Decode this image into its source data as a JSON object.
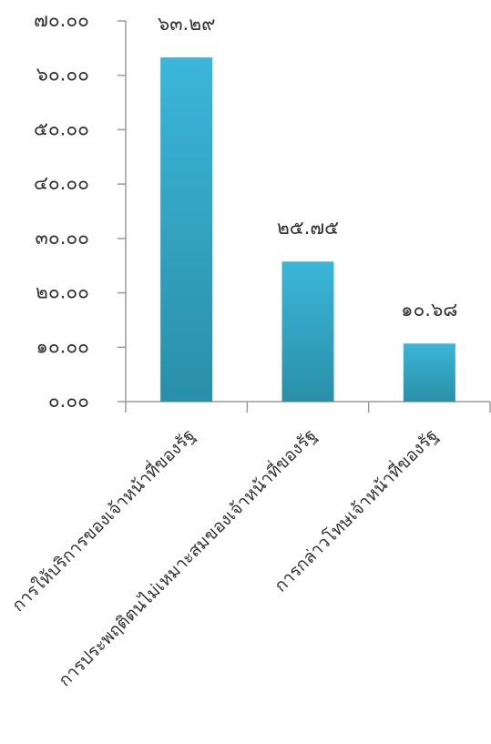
{
  "chart_data": {
    "type": "bar",
    "title": "",
    "xlabel": "",
    "ylabel": "",
    "categories": [
      "การให้บริการของเจ้าหน้าที่ของรัฐ",
      "การประพฤติตนไม่เหมาะสมของเจ้าหน้าที่ของรัฐ",
      "การกล่าวโทษเจ้าหน้าที่ของรัฐ"
    ],
    "values": [
      63.29,
      25.75,
      10.68
    ],
    "value_labels": [
      "๖๓.๒๙",
      "๒๕.๗๕",
      "๑๐.๖๘"
    ],
    "ylim": [
      0,
      70
    ],
    "yticks": [
      0,
      10,
      20,
      30,
      40,
      50,
      60,
      70
    ],
    "ytick_labels": [
      "๐.๐๐",
      "๑๐.๐๐",
      "๒๐.๐๐",
      "๓๐.๐๐",
      "๔๐.๐๐",
      "๕๐.๐๐",
      "๖๐.๐๐",
      "๗๐.๐๐"
    ],
    "grid": false,
    "legend": "none",
    "colors": {
      "bar_top": "#3bb6d9",
      "bar_bottom": "#2a8fa8",
      "axis": "#9a9a9a",
      "text": "#333333"
    }
  }
}
